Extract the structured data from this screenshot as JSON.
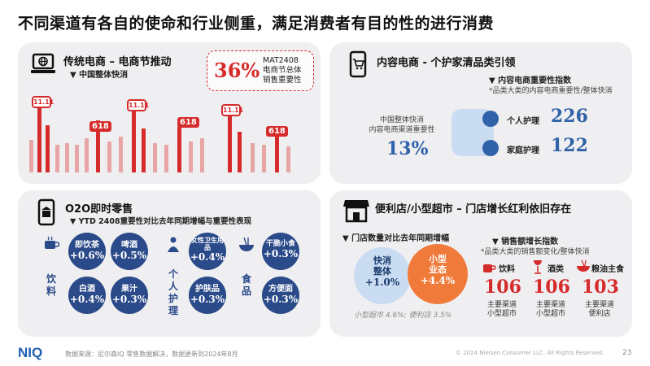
{
  "title": "不同渠道有各自的使命和行业侧重，满足消费者有目的性的进行消费",
  "panel1": {
    "title": "传统电商 – 电商节推动",
    "subtitle": "中国整体快消",
    "pct": "36%",
    "mat_lines": [
      "MAT2408",
      "电商节总体",
      "销售重要性"
    ],
    "tag_618": "618",
    "tag_1111": "11.11"
  },
  "panel2": {
    "title": "内容电商 - 个护家清品类引领",
    "subtitle": "内容电商重要性指数",
    "note": "*品类大类的内容电商重要性/整体快消",
    "left_lines": [
      "中国整体快消",
      "内容电商渠道重要性"
    ],
    "left_pct": "13%",
    "items": [
      {
        "label": "个人护理",
        "value": "226"
      },
      {
        "label": "家庭护理",
        "value": "122"
      }
    ]
  },
  "panel3": {
    "title": "O2O即时零售",
    "subtitle": "YTD 2408重要性对比去年同期增幅与重要性表现",
    "groups": [
      {
        "vertical": "饮料",
        "items": [
          {
            "label": "即饮茶",
            "value": "+0.6%"
          },
          {
            "label": "啤酒",
            "value": "+0.5%"
          },
          {
            "label": "白酒",
            "value": "+0.4%"
          },
          {
            "label": "果汁",
            "value": "+0.3%"
          }
        ]
      },
      {
        "vertical": "个人护理",
        "items": [
          {
            "label": "女性卫生用品",
            "value": "+0.4%"
          },
          {
            "label": "护肤品",
            "value": "+0.3%"
          }
        ]
      },
      {
        "vertical": "食品",
        "items": [
          {
            "label": "干脆小食",
            "value": "+0.3%"
          },
          {
            "label": "方便面",
            "value": "+0.3%"
          }
        ]
      }
    ]
  },
  "panel4": {
    "title": "便利店/小型超市 – 门店增长红利依旧存在",
    "left_subtitle": "门店数量对比去年同期增幅",
    "bubble1": {
      "label": "快消整体",
      "value": "+1.0%"
    },
    "bubble2": {
      "label": "小型业态",
      "value": "+4.4%"
    },
    "left_note": "小型超市 4.6%; 便利店 3.5%",
    "right_subtitle": "销售额增长指数",
    "right_note": "*品类大类的销售额变化/整体快消",
    "cats": [
      {
        "label": "饮料",
        "value": "106",
        "channel": [
          "主要渠道",
          "小型超市"
        ]
      },
      {
        "label": "酒类",
        "value": "106",
        "channel": [
          "主要渠道",
          "小型超市"
        ]
      },
      {
        "label": "粮油主食",
        "value": "103",
        "channel": [
          "主要渠道",
          "便利店"
        ]
      }
    ]
  },
  "footer": {
    "logo": "NIQ",
    "source": "数据来源：尼尔森IQ 零售数据解决，数据更新到2024年8月",
    "copyright": "© 2024 Nielsen Consumer LLC. All Rights Reserved.",
    "page": "23"
  },
  "colors": {
    "accent_red": "#d62b2b",
    "accent_blue": "#2f62a8",
    "navy": "#2b4a8a",
    "panel_bg": "#efeff2"
  }
}
